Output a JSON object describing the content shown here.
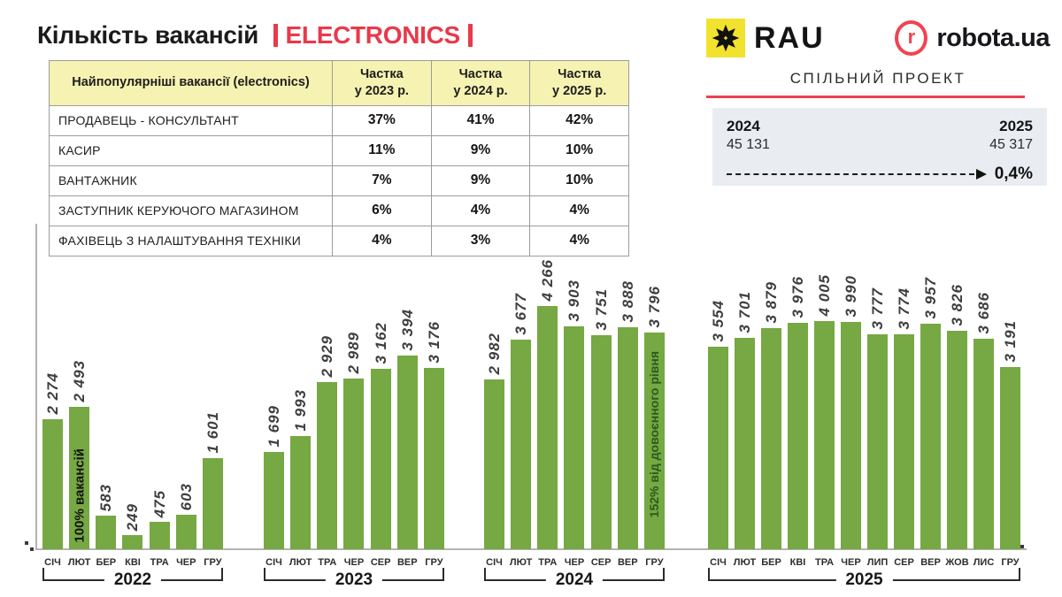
{
  "title": {
    "main": "Кількість вакансій",
    "highlight": "ELECTRONICS"
  },
  "branding": {
    "rau_name": "RAU",
    "robota_mark_letter": "r",
    "robota_name": "robota.ua",
    "subtitle": "СПІЛЬНИЙ ПРОЕКТ"
  },
  "summary": {
    "left_year": "2024",
    "left_value": "45 131",
    "right_year": "2025",
    "right_value": "45 317",
    "delta_label": "0,4%"
  },
  "table": {
    "name_header": "Найпопулярніші вакансії (electronics)",
    "value_headers": [
      "Частка\nу 2023 р.",
      "Частка\nу 2024 р.",
      "Частка\nу 2025 р."
    ],
    "rows": [
      {
        "name": "ПРОДАВЕЦЬ - КОНСУЛЬТАНТ",
        "values": [
          "37%",
          "41%",
          "42%"
        ]
      },
      {
        "name": "КАСИР",
        "values": [
          "11%",
          "9%",
          "10%"
        ]
      },
      {
        "name": "ВАНТАЖНИК",
        "values": [
          "7%",
          "9%",
          "10%"
        ]
      },
      {
        "name": "ЗАСТУПНИК КЕРУЮЧОГО МАГАЗИНОМ",
        "values": [
          "6%",
          "4%",
          "4%"
        ]
      },
      {
        "name": "ФАХІВЕЦЬ З НАЛАШТУВАННЯ ТЕХНІКИ",
        "values": [
          "4%",
          "3%",
          "4%"
        ]
      }
    ]
  },
  "chart_data": {
    "type": "bar",
    "title": "Кількість вакансій | ELECTRONICS",
    "ylim": [
      0,
      4266
    ],
    "grid": false,
    "legend": "none",
    "groups": [
      {
        "year": "2022",
        "months": [
          "СІЧ",
          "ЛЮТ",
          "БЕР",
          "КВІ",
          "ТРА",
          "ЧЕР",
          "ГРУ"
        ],
        "values": [
          2274,
          2493,
          583,
          249,
          475,
          603,
          1601
        ],
        "annotation_month": "ЛЮТ",
        "annotation_text": "100% вакансій"
      },
      {
        "year": "2023",
        "months": [
          "СІЧ",
          "ЛЮТ",
          "ТРА",
          "ЧЕР",
          "СЕР",
          "ВЕР",
          "ГРУ"
        ],
        "values": [
          1699,
          1993,
          2929,
          2989,
          3162,
          3394,
          3176
        ]
      },
      {
        "year": "2024",
        "months": [
          "СІЧ",
          "ЛЮТ",
          "ТРА",
          "ЧЕР",
          "СЕР",
          "ВЕР",
          "ГРУ"
        ],
        "values": [
          2982,
          3677,
          4266,
          3903,
          3751,
          3888,
          3796
        ],
        "annotation_month": "ГРУ",
        "annotation_text": "152% від довоєнного рівня"
      },
      {
        "year": "2025",
        "months": [
          "СІЧ",
          "ЛЮТ",
          "БЕР",
          "КВІ",
          "ТРА",
          "ЧЕР",
          "ЛИП",
          "СЕР",
          "ВЕР",
          "ЖОВ",
          "ЛИС",
          "ГРУ"
        ],
        "values": [
          3554,
          3701,
          3879,
          3976,
          4005,
          3990,
          3777,
          3774,
          3957,
          3826,
          3686,
          3191
        ]
      }
    ]
  },
  "colors": {
    "bar_green": "#76a843",
    "accent_red": "#e9394b",
    "brand_line_red": "#ef3f4f",
    "rau_yellow": "#f1e32d",
    "robota_red": "#f14351",
    "table_header_yellow": "#f6f2b1",
    "summary_bg": "#e9edf2",
    "annotation_dark_green": "#2b5a1b"
  }
}
